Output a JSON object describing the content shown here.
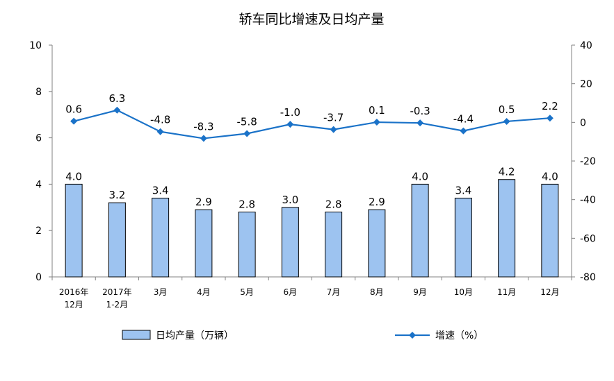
{
  "chart_data": {
    "type": "bar",
    "title": "轿车同比增速及日均产量",
    "categories": [
      [
        "2016年",
        "12月"
      ],
      [
        "2017年",
        "1-2月"
      ],
      [
        "3月"
      ],
      [
        "4月"
      ],
      [
        "5月"
      ],
      [
        "6月"
      ],
      [
        "7月"
      ],
      [
        "8月"
      ],
      [
        "9月"
      ],
      [
        "10月"
      ],
      [
        "11月"
      ],
      [
        "12月"
      ]
    ],
    "left_axis": {
      "ylim": [
        0,
        10
      ],
      "ticks": [
        "0",
        "2",
        "4",
        "6",
        "8",
        "10"
      ]
    },
    "right_axis": {
      "ylim": [
        -80,
        40
      ],
      "ticks": [
        "-80",
        "-60",
        "-40",
        "-20",
        "0",
        "20",
        "40"
      ]
    },
    "series": [
      {
        "name": "日均产量（万辆）",
        "type": "bar",
        "axis": "left",
        "color": "#9dc3f0",
        "values": [
          4.0,
          3.2,
          3.4,
          2.9,
          2.8,
          3.0,
          2.8,
          2.9,
          4.0,
          3.4,
          4.2,
          4.0
        ],
        "labels": [
          "4.0",
          "3.2",
          "3.4",
          "2.9",
          "2.8",
          "3.0",
          "2.8",
          "2.9",
          "4.0",
          "3.4",
          "4.2",
          "4.0"
        ]
      },
      {
        "name": "增速（%）",
        "type": "line",
        "axis": "right",
        "color": "#1a72c8",
        "values": [
          0.6,
          6.3,
          -4.8,
          -8.3,
          -5.8,
          -1.0,
          -3.7,
          0.1,
          -0.3,
          -4.4,
          0.5,
          2.2
        ],
        "labels": [
          "0.6",
          "6.3",
          "-4.8",
          "-8.3",
          "-5.8",
          "-1.0",
          "-3.7",
          "0.1",
          "-0.3",
          "-4.4",
          "0.5",
          "2.2"
        ]
      }
    ],
    "legend_position": "bottom",
    "grid": false
  }
}
